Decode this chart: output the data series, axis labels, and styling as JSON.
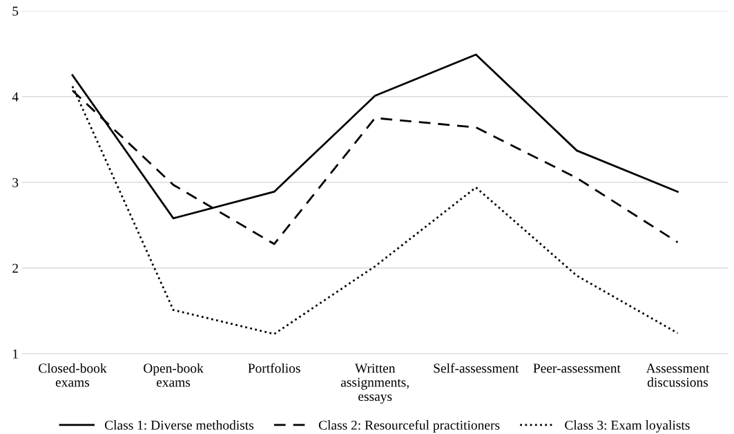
{
  "chart_data": {
    "type": "line",
    "categories": [
      "Closed-book\nexams",
      "Open-book\nexams",
      "Portfolios",
      "Written\nassignments,\nessays",
      "Self-assessment",
      "Peer-assessment",
      "Assessment\ndiscussions"
    ],
    "series": [
      {
        "name": "Class 1: Diverse methodists",
        "color": "#000000",
        "line_style": "solid",
        "values": [
          4.25,
          2.58,
          2.89,
          4.01,
          4.49,
          3.37,
          2.89
        ]
      },
      {
        "name": "Class 2: Resourceful practitioners",
        "color": "#000000",
        "line_style": "dashed",
        "values": [
          4.07,
          2.97,
          2.28,
          3.75,
          3.64,
          3.05,
          2.3
        ]
      },
      {
        "name": "Class 3: Exam loyalists",
        "color": "#000000",
        "line_style": "dotted",
        "values": [
          4.12,
          1.51,
          1.23,
          2.02,
          2.94,
          1.91,
          1.24
        ]
      }
    ],
    "ylim": [
      1,
      5
    ],
    "yticks": [
      1,
      2,
      3,
      4,
      5
    ],
    "grid": "y",
    "legend": "bottom",
    "marker": "none"
  }
}
